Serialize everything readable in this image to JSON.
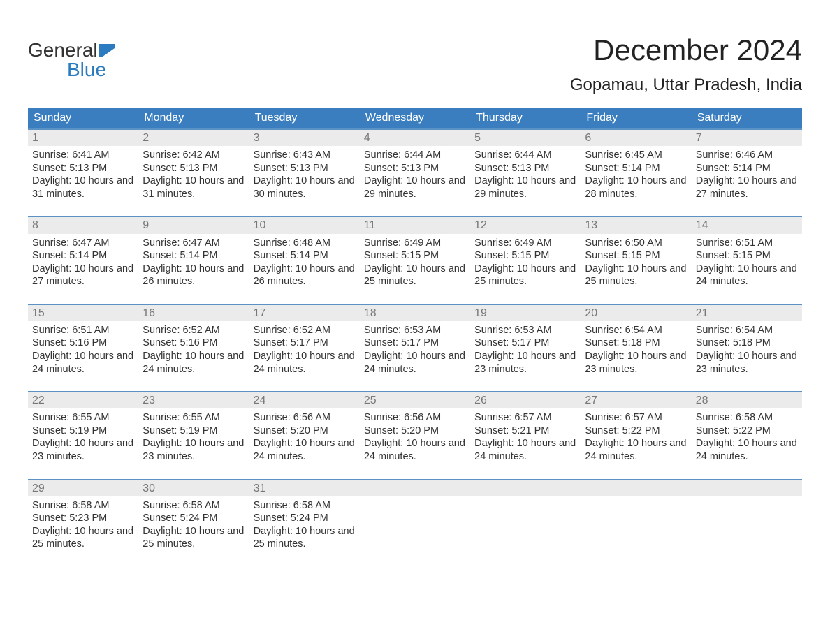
{
  "brand": {
    "word1": "General",
    "word2": "Blue"
  },
  "title": {
    "month": "December 2024",
    "location": "Gopamau, Uttar Pradesh, India"
  },
  "colors": {
    "header_bg": "#3a7ebf",
    "header_text": "#ffffff",
    "row_border": "#5a92c6",
    "daynum_bg": "#ebebeb",
    "daynum_text": "#777777",
    "body_text": "#333333",
    "brand_blue": "#2a7bbf",
    "page_bg": "#ffffff"
  },
  "typography": {
    "month_fontsize": 42,
    "location_fontsize": 24,
    "header_fontsize": 16,
    "daynum_fontsize": 16,
    "body_fontsize": 14.5
  },
  "layout": {
    "columns": 7,
    "rows": 5
  },
  "weekdays": [
    "Sunday",
    "Monday",
    "Tuesday",
    "Wednesday",
    "Thursday",
    "Friday",
    "Saturday"
  ],
  "weeks": [
    [
      {
        "n": "1",
        "sr": "Sunrise: 6:41 AM",
        "ss": "Sunset: 5:13 PM",
        "dl": "Daylight: 10 hours and 31 minutes."
      },
      {
        "n": "2",
        "sr": "Sunrise: 6:42 AM",
        "ss": "Sunset: 5:13 PM",
        "dl": "Daylight: 10 hours and 31 minutes."
      },
      {
        "n": "3",
        "sr": "Sunrise: 6:43 AM",
        "ss": "Sunset: 5:13 PM",
        "dl": "Daylight: 10 hours and 30 minutes."
      },
      {
        "n": "4",
        "sr": "Sunrise: 6:44 AM",
        "ss": "Sunset: 5:13 PM",
        "dl": "Daylight: 10 hours and 29 minutes."
      },
      {
        "n": "5",
        "sr": "Sunrise: 6:44 AM",
        "ss": "Sunset: 5:13 PM",
        "dl": "Daylight: 10 hours and 29 minutes."
      },
      {
        "n": "6",
        "sr": "Sunrise: 6:45 AM",
        "ss": "Sunset: 5:14 PM",
        "dl": "Daylight: 10 hours and 28 minutes."
      },
      {
        "n": "7",
        "sr": "Sunrise: 6:46 AM",
        "ss": "Sunset: 5:14 PM",
        "dl": "Daylight: 10 hours and 27 minutes."
      }
    ],
    [
      {
        "n": "8",
        "sr": "Sunrise: 6:47 AM",
        "ss": "Sunset: 5:14 PM",
        "dl": "Daylight: 10 hours and 27 minutes."
      },
      {
        "n": "9",
        "sr": "Sunrise: 6:47 AM",
        "ss": "Sunset: 5:14 PM",
        "dl": "Daylight: 10 hours and 26 minutes."
      },
      {
        "n": "10",
        "sr": "Sunrise: 6:48 AM",
        "ss": "Sunset: 5:14 PM",
        "dl": "Daylight: 10 hours and 26 minutes."
      },
      {
        "n": "11",
        "sr": "Sunrise: 6:49 AM",
        "ss": "Sunset: 5:15 PM",
        "dl": "Daylight: 10 hours and 25 minutes."
      },
      {
        "n": "12",
        "sr": "Sunrise: 6:49 AM",
        "ss": "Sunset: 5:15 PM",
        "dl": "Daylight: 10 hours and 25 minutes."
      },
      {
        "n": "13",
        "sr": "Sunrise: 6:50 AM",
        "ss": "Sunset: 5:15 PM",
        "dl": "Daylight: 10 hours and 25 minutes."
      },
      {
        "n": "14",
        "sr": "Sunrise: 6:51 AM",
        "ss": "Sunset: 5:15 PM",
        "dl": "Daylight: 10 hours and 24 minutes."
      }
    ],
    [
      {
        "n": "15",
        "sr": "Sunrise: 6:51 AM",
        "ss": "Sunset: 5:16 PM",
        "dl": "Daylight: 10 hours and 24 minutes."
      },
      {
        "n": "16",
        "sr": "Sunrise: 6:52 AM",
        "ss": "Sunset: 5:16 PM",
        "dl": "Daylight: 10 hours and 24 minutes."
      },
      {
        "n": "17",
        "sr": "Sunrise: 6:52 AM",
        "ss": "Sunset: 5:17 PM",
        "dl": "Daylight: 10 hours and 24 minutes."
      },
      {
        "n": "18",
        "sr": "Sunrise: 6:53 AM",
        "ss": "Sunset: 5:17 PM",
        "dl": "Daylight: 10 hours and 24 minutes."
      },
      {
        "n": "19",
        "sr": "Sunrise: 6:53 AM",
        "ss": "Sunset: 5:17 PM",
        "dl": "Daylight: 10 hours and 23 minutes."
      },
      {
        "n": "20",
        "sr": "Sunrise: 6:54 AM",
        "ss": "Sunset: 5:18 PM",
        "dl": "Daylight: 10 hours and 23 minutes."
      },
      {
        "n": "21",
        "sr": "Sunrise: 6:54 AM",
        "ss": "Sunset: 5:18 PM",
        "dl": "Daylight: 10 hours and 23 minutes."
      }
    ],
    [
      {
        "n": "22",
        "sr": "Sunrise: 6:55 AM",
        "ss": "Sunset: 5:19 PM",
        "dl": "Daylight: 10 hours and 23 minutes."
      },
      {
        "n": "23",
        "sr": "Sunrise: 6:55 AM",
        "ss": "Sunset: 5:19 PM",
        "dl": "Daylight: 10 hours and 23 minutes."
      },
      {
        "n": "24",
        "sr": "Sunrise: 6:56 AM",
        "ss": "Sunset: 5:20 PM",
        "dl": "Daylight: 10 hours and 24 minutes."
      },
      {
        "n": "25",
        "sr": "Sunrise: 6:56 AM",
        "ss": "Sunset: 5:20 PM",
        "dl": "Daylight: 10 hours and 24 minutes."
      },
      {
        "n": "26",
        "sr": "Sunrise: 6:57 AM",
        "ss": "Sunset: 5:21 PM",
        "dl": "Daylight: 10 hours and 24 minutes."
      },
      {
        "n": "27",
        "sr": "Sunrise: 6:57 AM",
        "ss": "Sunset: 5:22 PM",
        "dl": "Daylight: 10 hours and 24 minutes."
      },
      {
        "n": "28",
        "sr": "Sunrise: 6:58 AM",
        "ss": "Sunset: 5:22 PM",
        "dl": "Daylight: 10 hours and 24 minutes."
      }
    ],
    [
      {
        "n": "29",
        "sr": "Sunrise: 6:58 AM",
        "ss": "Sunset: 5:23 PM",
        "dl": "Daylight: 10 hours and 25 minutes."
      },
      {
        "n": "30",
        "sr": "Sunrise: 6:58 AM",
        "ss": "Sunset: 5:24 PM",
        "dl": "Daylight: 10 hours and 25 minutes."
      },
      {
        "n": "31",
        "sr": "Sunrise: 6:58 AM",
        "ss": "Sunset: 5:24 PM",
        "dl": "Daylight: 10 hours and 25 minutes."
      },
      {
        "empty": true
      },
      {
        "empty": true
      },
      {
        "empty": true
      },
      {
        "empty": true
      }
    ]
  ]
}
